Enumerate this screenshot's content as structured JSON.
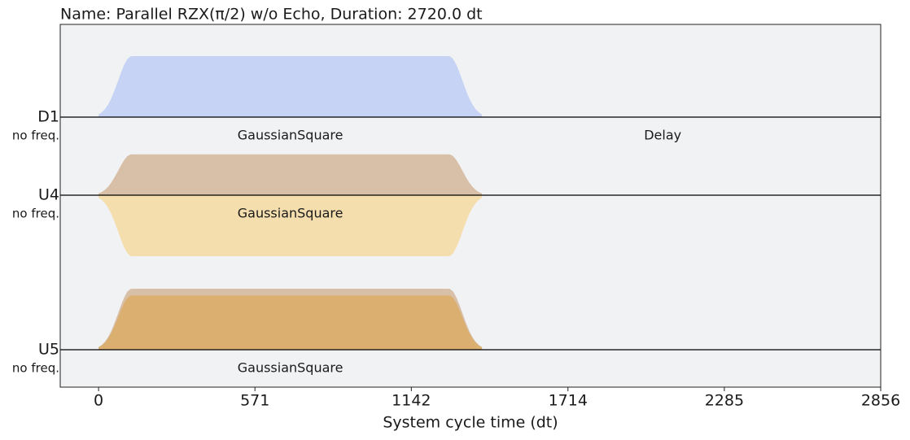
{
  "chart_data": {
    "type": "pulse_schedule",
    "title": "Name: Parallel RZX(π/2) w/o Echo, Duration: 2720.0 dt",
    "xlabel": "System cycle time (dt)",
    "xlim": [
      -140,
      2856
    ],
    "xticks": [
      0,
      571,
      1142,
      1714,
      2285,
      2856
    ],
    "channels": [
      {
        "name": "D1",
        "freq": "no freq.",
        "real_color": "#c6d3f5",
        "imag_color": "#6b78a8"
      },
      {
        "name": "U4",
        "freq": "no freq.",
        "real_color": "#d8bfa7",
        "imag_color": "#f5dca6"
      },
      {
        "name": "U5",
        "freq": "no freq.",
        "real_color": "#d8bfa7",
        "imag_color": "#dbad6a"
      }
    ],
    "pulses": [
      {
        "channel": 0,
        "name": "GaussianSquare",
        "t0": 0,
        "duration": 1400,
        "width": 1160,
        "real": 1.0,
        "imag": 0.0
      },
      {
        "channel": 0,
        "name": "Delay",
        "t0": 1400,
        "duration": 1320
      },
      {
        "channel": 1,
        "name": "GaussianSquare",
        "t0": 0,
        "duration": 1400,
        "width": 1160,
        "real": 0.67,
        "imag": -1.0
      },
      {
        "channel": 2,
        "name": "GaussianSquare",
        "t0": 0,
        "duration": 1400,
        "width": 1160,
        "real": 1.0,
        "imag": 0.89
      }
    ]
  }
}
